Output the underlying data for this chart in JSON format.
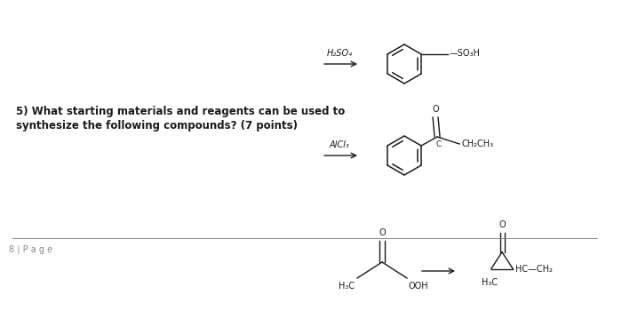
{
  "bg_color": "#ffffff",
  "question_text_line1": "5) What starting materials and reagents can be used to",
  "question_text_line2": "synthesize the following compounds? (7 points)",
  "page_label": "8 | P a g e",
  "reaction1_reagent": "H₂SO₄",
  "reaction2_reagent": "AlCl₃",
  "reaction1_product_label": "SO₃H",
  "reaction2_product_label": "CH₂CH₃",
  "reaction3_left_label1": "H₃C",
  "reaction3_left_label2": "OOH",
  "reaction3_right_label1": "HC—CH₂",
  "reaction3_right_label2": "H₃C",
  "text_color": "#1a1a1a",
  "line_color": "#1a1a1a",
  "gray_color": "#888888"
}
